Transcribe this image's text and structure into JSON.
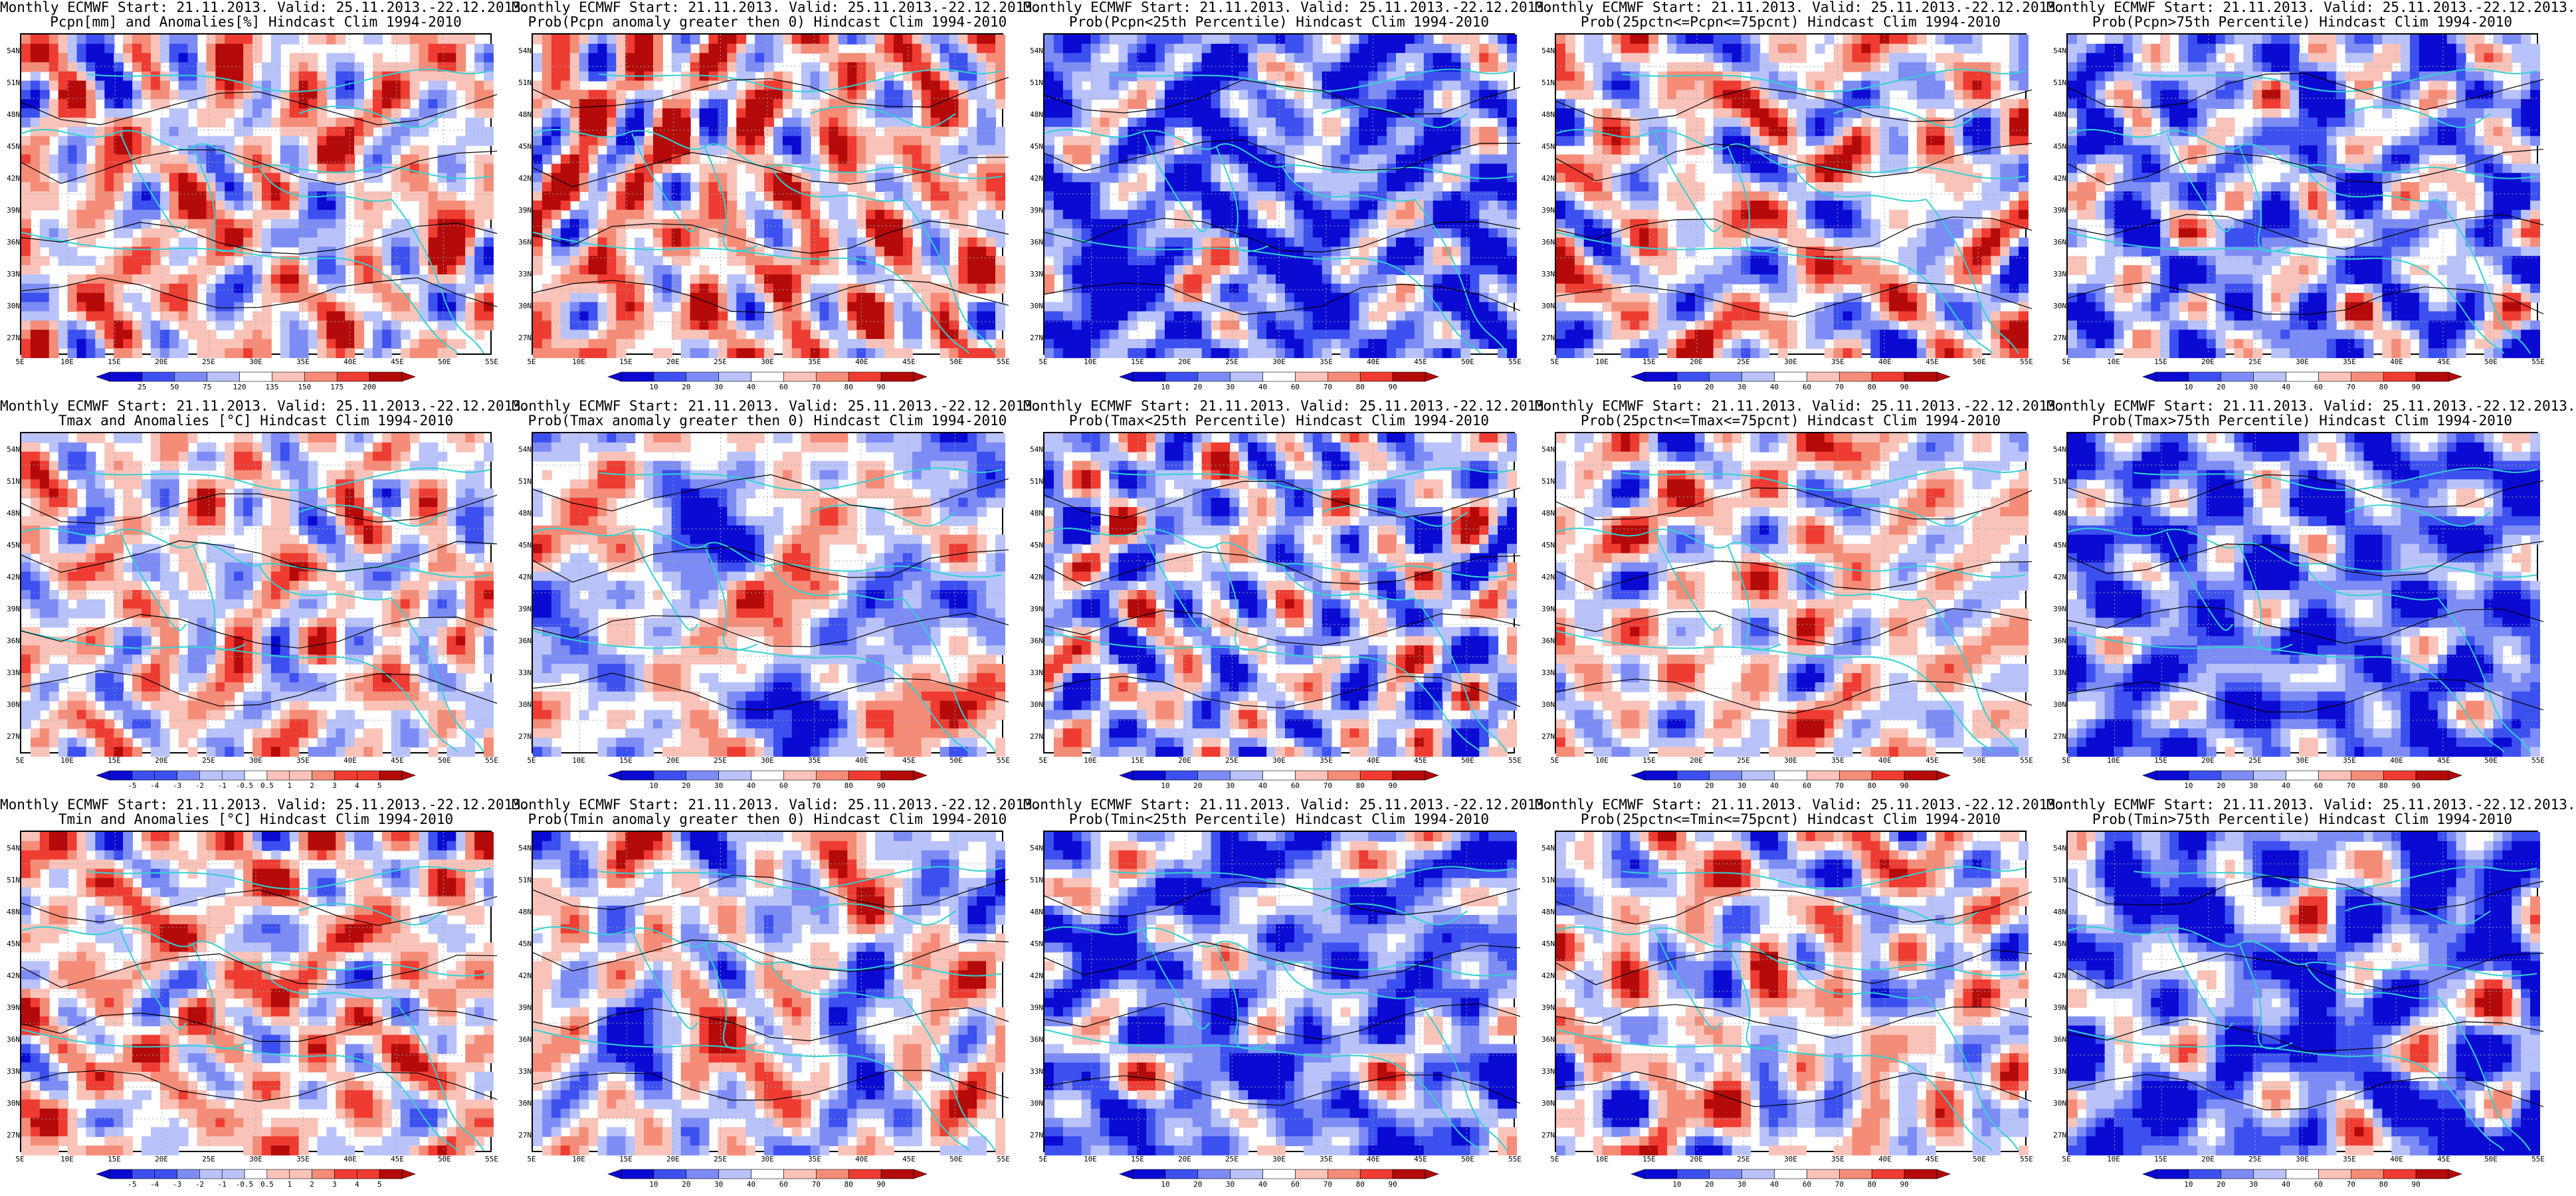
{
  "title_line1": "Monthly ECMWF Start: 21.11.2013. Valid: 25.11.2013.-22.12.2013.",
  "lat_labels": [
    "54N",
    "51N",
    "48N",
    "45N",
    "42N",
    "39N",
    "36N",
    "33N",
    "30N",
    "27N"
  ],
  "lon_labels": [
    "5E",
    "10E",
    "15E",
    "20E",
    "25E",
    "30E",
    "35E",
    "40E",
    "45E",
    "50E",
    "55E"
  ],
  "colors": {
    "deep_blue": "#0a0ad2",
    "blue": "#3c50f0",
    "mid_blue": "#7d8cf5",
    "light_blue": "#b9c3fa",
    "white": "#ffffff",
    "light_red": "#fac3b9",
    "mid_red": "#f58c78",
    "red": "#ee3c32",
    "deep_red": "#b40a0a",
    "coast": "#32d2d2",
    "contour": "#000000"
  },
  "colorbars": {
    "pcpn_anom": [
      "25",
      "50",
      "75",
      "120",
      "135",
      "150",
      "175",
      "200"
    ],
    "tanom": [
      "-5",
      "-4",
      "-3",
      "-2",
      "-1",
      "-0.5",
      "0.5",
      "1",
      "2",
      "3",
      "4",
      "5"
    ],
    "prob": [
      "10",
      "20",
      "30",
      "40",
      "60",
      "70",
      "80",
      "90"
    ]
  },
  "panels": [
    {
      "line2": "Pcpn[mm] and Anomalies[%] Hindcast Clim 1994-2010",
      "cbar": "pcpn_anom",
      "bias": 0.1,
      "seed": 11
    },
    {
      "line2": "Prob(Pcpn anomaly greater then 0) Hindcast Clim 1994-2010",
      "cbar": "prob",
      "bias": 0.2,
      "seed": 12
    },
    {
      "line2": "Prob(Pcpn<25th Percentile) Hindcast Clim 1994-2010",
      "cbar": "prob",
      "bias": -0.55,
      "seed": 13
    },
    {
      "line2": "Prob(25pctn<=Pcpn<=75pcnt) Hindcast Clim 1994-2010",
      "cbar": "prob",
      "bias": 0.0,
      "seed": 14
    },
    {
      "line2": "Prob(Pcpn>75th Percentile) Hindcast Clim 1994-2010",
      "cbar": "prob",
      "bias": -0.35,
      "seed": 15
    },
    {
      "line2": "Tmax and Anomalies [°C] Hindcast Clim 1994-2010",
      "cbar": "tanom",
      "bias": 0.05,
      "seed": 21
    },
    {
      "line2": "Prob(Tmax anomaly greater then 0) Hindcast Clim 1994-2010",
      "cbar": "prob",
      "bias": -0.1,
      "seed": 22
    },
    {
      "line2": "Prob(Tmax<25th Percentile) Hindcast Clim 1994-2010",
      "cbar": "prob",
      "bias": -0.2,
      "seed": 23
    },
    {
      "line2": "Prob(25pctn<=Tmax<=75pcnt) Hindcast Clim 1994-2010",
      "cbar": "prob",
      "bias": 0.05,
      "seed": 24
    },
    {
      "line2": "Prob(Tmax>75th Percentile) Hindcast Clim 1994-2010",
      "cbar": "prob",
      "bias": -0.55,
      "seed": 25
    },
    {
      "line2": "Tmin and Anomalies [°C] Hindcast Clim 1994-2010",
      "cbar": "tanom",
      "bias": 0.15,
      "seed": 31
    },
    {
      "line2": "Prob(Tmin anomaly greater then 0) Hindcast Clim 1994-2010",
      "cbar": "prob",
      "bias": -0.05,
      "seed": 32
    },
    {
      "line2": "Prob(Tmin<25th Percentile) Hindcast Clim 1994-2010",
      "cbar": "prob",
      "bias": -0.45,
      "seed": 33
    },
    {
      "line2": "Prob(25pctn<=Tmin<=75pcnt) Hindcast Clim 1994-2010",
      "cbar": "prob",
      "bias": 0.0,
      "seed": 34
    },
    {
      "line2": "Prob(Tmin>75th Percentile) Hindcast Clim 1994-2010",
      "cbar": "prob",
      "bias": -0.5,
      "seed": 35
    }
  ]
}
